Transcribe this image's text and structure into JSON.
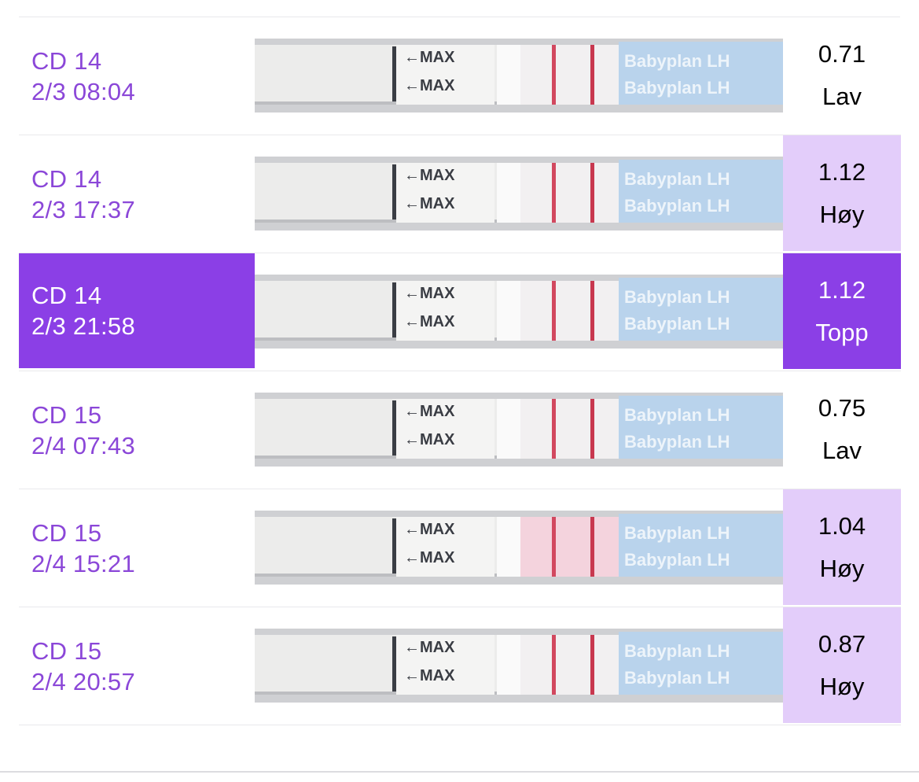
{
  "colors": {
    "accent": "#8b3fe6",
    "date_text": "#8b47d8",
    "high_bg": "#e3cdfa",
    "strip_blue": "#b9d3ec",
    "test_line": "#d2485f"
  },
  "rows": [
    {
      "cd": "CD 14",
      "datetime": "2/3 08:04",
      "value": "0.71",
      "level": "Lav",
      "status": "low",
      "strip_brand": "Babyplan LH",
      "strip_max": "MAX"
    },
    {
      "cd": "CD 14",
      "datetime": "2/3 17:37",
      "value": "1.12",
      "level": "Høy",
      "status": "high",
      "strip_brand": "Babyplan LH",
      "strip_max": "MAX"
    },
    {
      "cd": "CD 14",
      "datetime": "2/3 21:58",
      "value": "1.12",
      "level": "Topp",
      "status": "peak",
      "selected": true,
      "strip_brand": "Babyplan LH",
      "strip_max": "MAX"
    },
    {
      "cd": "CD 15",
      "datetime": "2/4 07:43",
      "value": "0.75",
      "level": "Lav",
      "status": "low",
      "strip_brand": "Babyplan LH",
      "strip_max": "MAX"
    },
    {
      "cd": "CD 15",
      "datetime": "2/4 15:21",
      "value": "1.04",
      "level": "Høy",
      "status": "high",
      "strip_brand": "Babyplan LH",
      "strip_max": "MAX"
    },
    {
      "cd": "CD 15",
      "datetime": "2/4 20:57",
      "value": "0.87",
      "level": "Høy",
      "status": "high",
      "strip_brand": "Babyplan LH",
      "strip_max": "MAX"
    }
  ]
}
